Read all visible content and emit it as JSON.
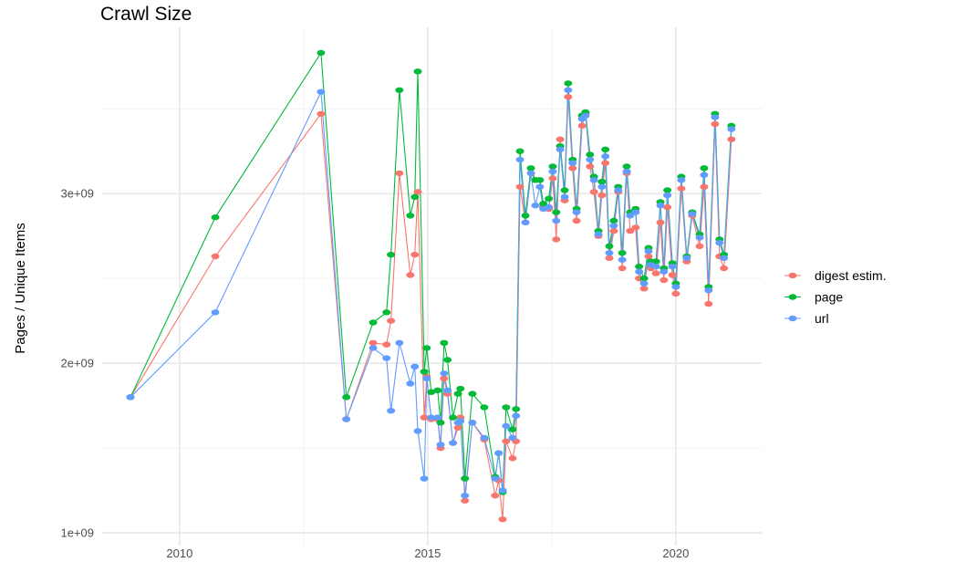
{
  "chart_data": {
    "type": "line",
    "title": "Crawl Size",
    "xlabel": "",
    "ylabel": "Pages / Unique Items",
    "xlim": [
      2008.44,
      2021.73
    ],
    "ylim": [
      925000000.0,
      3980000000.0
    ],
    "x_ticks": [
      2010,
      2015,
      2020
    ],
    "x_tick_labels": [
      "2010",
      "2015",
      "2020"
    ],
    "y_ticks": [
      1000000000.0,
      2000000000.0,
      3000000000.0
    ],
    "y_tick_labels": [
      "1e+09",
      "2e+09",
      "3e+09"
    ],
    "grid": true,
    "legend_position": "right",
    "x": [
      2009.01,
      2010.72,
      2012.85,
      2013.36,
      2013.9,
      2014.17,
      2014.26,
      2014.43,
      2014.65,
      2014.74,
      2014.8,
      2014.93,
      2014.98,
      2015.07,
      2015.2,
      2015.26,
      2015.33,
      2015.4,
      2015.51,
      2015.61,
      2015.66,
      2015.75,
      2015.9,
      2016.14,
      2016.36,
      2016.43,
      2016.51,
      2016.58,
      2016.71,
      2016.78,
      2016.86,
      2016.97,
      2017.08,
      2017.17,
      2017.26,
      2017.33,
      2017.44,
      2017.52,
      2017.59,
      2017.67,
      2017.76,
      2017.83,
      2017.92,
      2018.0,
      2018.11,
      2018.18,
      2018.27,
      2018.35,
      2018.44,
      2018.51,
      2018.58,
      2018.66,
      2018.75,
      2018.84,
      2018.92,
      2019.01,
      2019.08,
      2019.19,
      2019.26,
      2019.36,
      2019.45,
      2019.5,
      2019.6,
      2019.69,
      2019.76,
      2019.83,
      2019.93,
      2020.0,
      2020.11,
      2020.22,
      2020.33,
      2020.48,
      2020.57,
      2020.66,
      2020.79,
      2020.88,
      2020.97,
      2021.12
    ],
    "series": [
      {
        "name": "digest estim.",
        "color": "#F8766D",
        "values": [
          1800000000.0,
          2630000000.0,
          3470000000.0,
          1670000000.0,
          2120000000.0,
          2110000000.0,
          2250000000.0,
          3120000000.0,
          2520000000.0,
          2640000000.0,
          3010000000.0,
          1680000000.0,
          1920000000.0,
          1670000000.0,
          1670000000.0,
          1500000000.0,
          1910000000.0,
          1820000000.0,
          1530000000.0,
          1620000000.0,
          1680000000.0,
          1190000000.0,
          1650000000.0,
          1550000000.0,
          1220000000.0,
          1310000000.0,
          1080000000.0,
          1540000000.0,
          1440000000.0,
          1540000000.0,
          3040000000.0,
          2830000000.0,
          3120000000.0,
          3080000000.0,
          3080000000.0,
          2920000000.0,
          2910000000.0,
          3090000000.0,
          2730000000.0,
          3320000000.0,
          2960000000.0,
          3570000000.0,
          3150000000.0,
          2840000000.0,
          3400000000.0,
          3470000000.0,
          3160000000.0,
          3010000000.0,
          2750000000.0,
          2990000000.0,
          3180000000.0,
          2620000000.0,
          2780000000.0,
          3010000000.0,
          2560000000.0,
          3120000000.0,
          2780000000.0,
          2800000000.0,
          2500000000.0,
          2440000000.0,
          2630000000.0,
          2560000000.0,
          2530000000.0,
          2830000000.0,
          2490000000.0,
          2920000000.0,
          2520000000.0,
          2410000000.0,
          3030000000.0,
          2600000000.0,
          2870000000.0,
          2690000000.0,
          3040000000.0,
          2350000000.0,
          3410000000.0,
          2630000000.0,
          2560000000.0,
          3320000000.0
        ]
      },
      {
        "name": "page",
        "color": "#00BA38",
        "values": [
          1800000000.0,
          2860000000.0,
          3830000000.0,
          1800000000.0,
          2240000000.0,
          2300000000.0,
          2640000000.0,
          3610000000.0,
          2870000000.0,
          2980000000.0,
          3720000000.0,
          1950000000.0,
          2090000000.0,
          1830000000.0,
          1840000000.0,
          1650000000.0,
          2120000000.0,
          2020000000.0,
          1680000000.0,
          1820000000.0,
          1850000000.0,
          1320000000.0,
          1820000000.0,
          1740000000.0,
          1330000000.0,
          1470000000.0,
          1240000000.0,
          1740000000.0,
          1610000000.0,
          1730000000.0,
          3250000000.0,
          2870000000.0,
          3150000000.0,
          3080000000.0,
          3080000000.0,
          2940000000.0,
          2970000000.0,
          3160000000.0,
          2890000000.0,
          3280000000.0,
          3020000000.0,
          3650000000.0,
          3200000000.0,
          2910000000.0,
          3460000000.0,
          3480000000.0,
          3230000000.0,
          3100000000.0,
          2780000000.0,
          3070000000.0,
          3260000000.0,
          2690000000.0,
          2840000000.0,
          3040000000.0,
          2650000000.0,
          3160000000.0,
          2890000000.0,
          2910000000.0,
          2570000000.0,
          2500000000.0,
          2680000000.0,
          2600000000.0,
          2600000000.0,
          2950000000.0,
          2560000000.0,
          3020000000.0,
          2590000000.0,
          2470000000.0,
          3100000000.0,
          2630000000.0,
          2890000000.0,
          2760000000.0,
          3150000000.0,
          2450000000.0,
          3470000000.0,
          2730000000.0,
          2640000000.0,
          3400000000.0
        ]
      },
      {
        "name": "url",
        "color": "#619CFF",
        "values": [
          1800000000.0,
          2300000000.0,
          3600000000.0,
          1670000000.0,
          2090000000.0,
          2030000000.0,
          1720000000.0,
          2120000000.0,
          1880000000.0,
          1980000000.0,
          1600000000.0,
          1320000000.0,
          1910000000.0,
          1680000000.0,
          1680000000.0,
          1520000000.0,
          1940000000.0,
          1840000000.0,
          1530000000.0,
          1650000000.0,
          1660000000.0,
          1220000000.0,
          1650000000.0,
          1560000000.0,
          1320000000.0,
          1470000000.0,
          1250000000.0,
          1630000000.0,
          1560000000.0,
          1690000000.0,
          3200000000.0,
          2830000000.0,
          3120000000.0,
          2930000000.0,
          3040000000.0,
          2910000000.0,
          2920000000.0,
          3130000000.0,
          2840000000.0,
          3260000000.0,
          2980000000.0,
          3610000000.0,
          3180000000.0,
          2890000000.0,
          3440000000.0,
          3460000000.0,
          3200000000.0,
          3080000000.0,
          2760000000.0,
          3040000000.0,
          3220000000.0,
          2650000000.0,
          2810000000.0,
          3020000000.0,
          2610000000.0,
          3130000000.0,
          2870000000.0,
          2890000000.0,
          2540000000.0,
          2470000000.0,
          2660000000.0,
          2580000000.0,
          2570000000.0,
          2930000000.0,
          2540000000.0,
          2990000000.0,
          2570000000.0,
          2450000000.0,
          3080000000.0,
          2620000000.0,
          2880000000.0,
          2740000000.0,
          3110000000.0,
          2430000000.0,
          3450000000.0,
          2710000000.0,
          2620000000.0,
          3380000000.0
        ]
      }
    ]
  }
}
